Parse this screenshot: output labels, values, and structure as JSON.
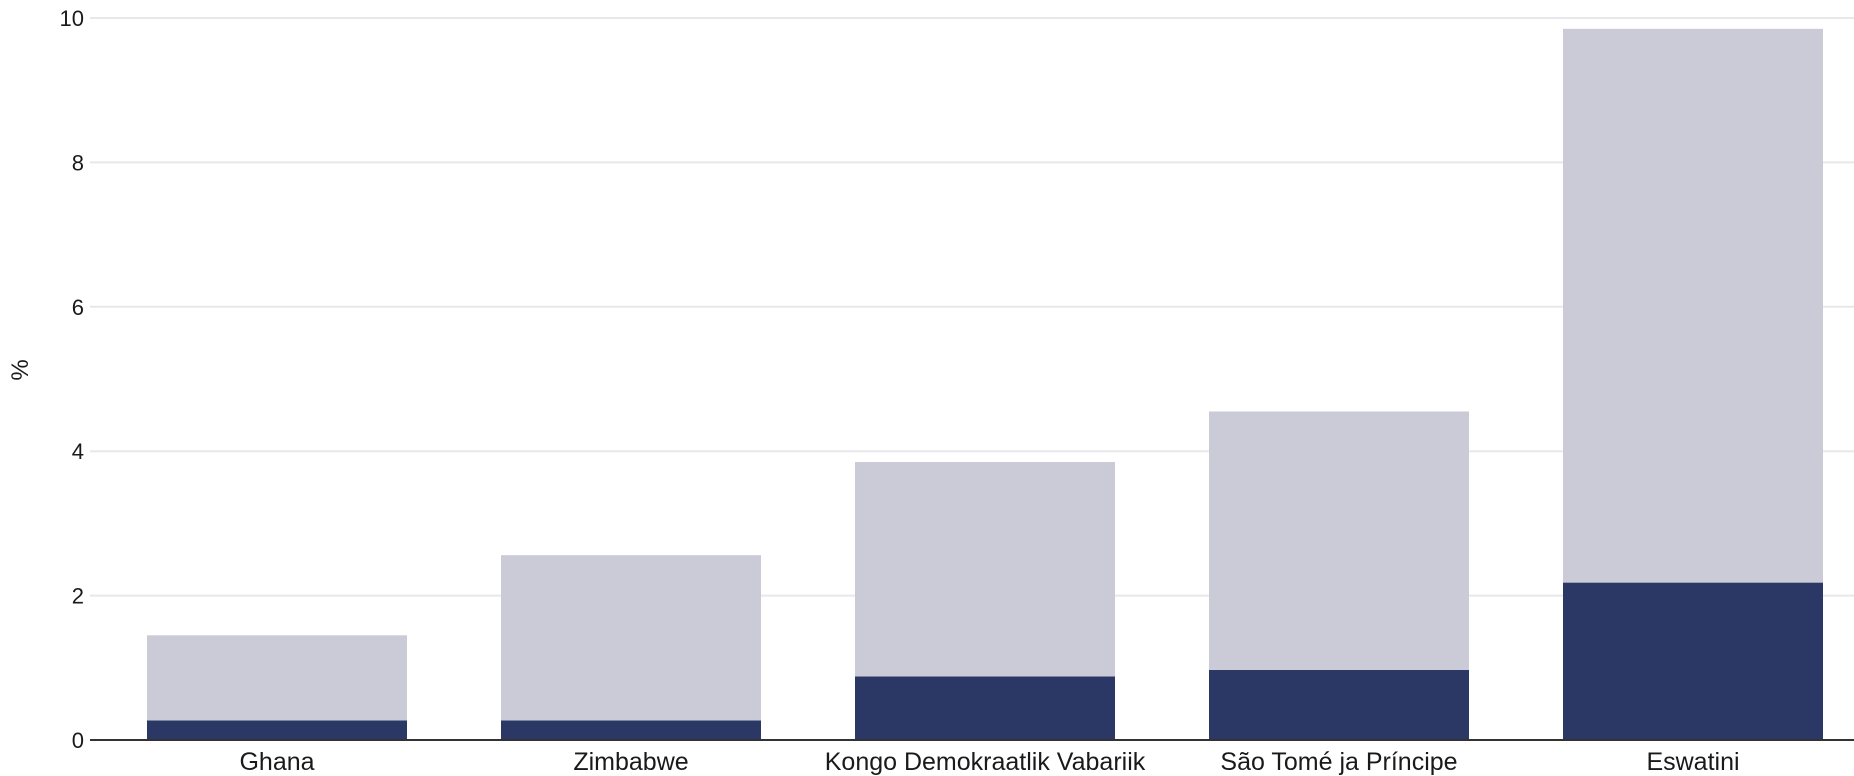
{
  "chart_data": {
    "type": "bar",
    "stacked": true,
    "title": "",
    "xlabel": "",
    "ylabel": "%",
    "ylim": [
      0,
      10
    ],
    "yticks": [
      0,
      2,
      4,
      6,
      8,
      10
    ],
    "grid": true,
    "legend": "none",
    "categories": [
      "Ghana",
      "Zimbabwe",
      "Kongo Demokraatlik Vabariik",
      "São Tomé ja Príncipe",
      "Eswatini"
    ],
    "series": [
      {
        "color": "#2b3866",
        "values": [
          0.27,
          0.27,
          0.88,
          0.97,
          2.18
        ]
      },
      {
        "color": "#cacbd7",
        "values": [
          1.18,
          2.29,
          2.97,
          3.58,
          7.67
        ]
      }
    ]
  }
}
